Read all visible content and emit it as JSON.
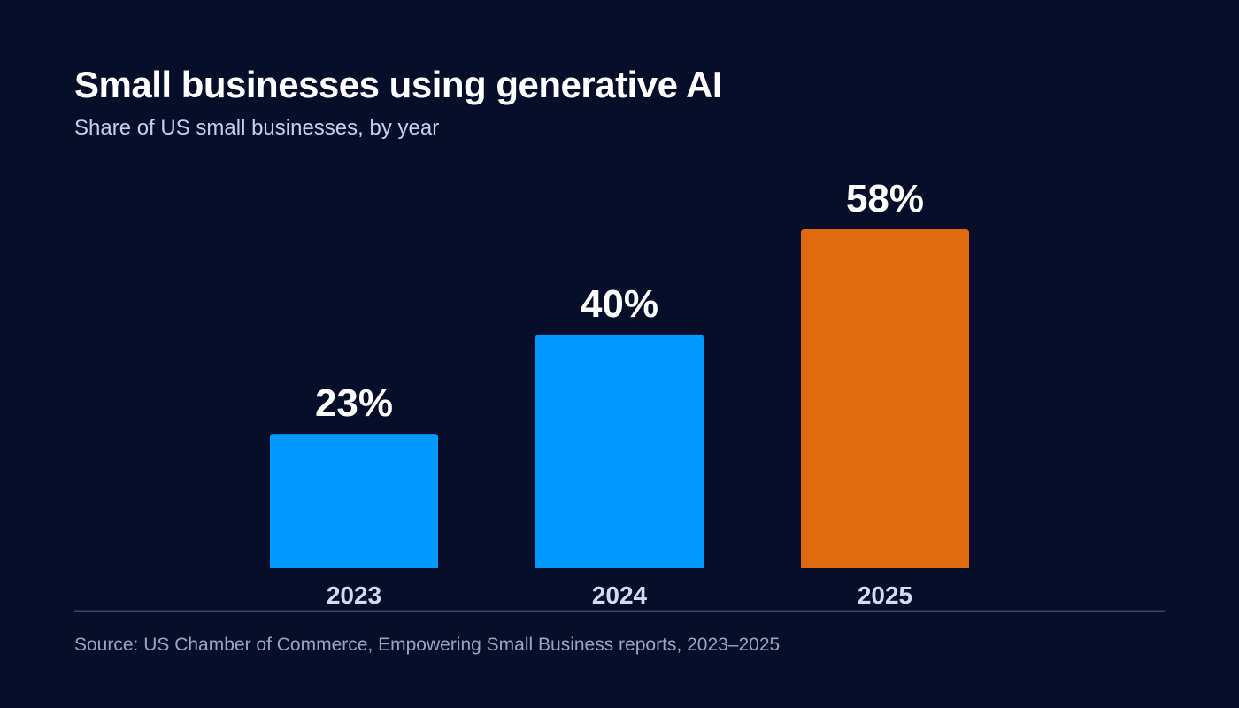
{
  "title": "Small businesses using generative AI",
  "subtitle": "Share of US small businesses, by year",
  "source": "Source: US Chamber of Commerce, Empowering Small Business reports, 2023–2025",
  "colors": {
    "background": "#070e2a",
    "bar_default": "#0099ff",
    "bar_highlight": "#e06a10",
    "axis_line": "#3a4470",
    "value_label": "#ffffff",
    "category_label": "#d4daf5"
  },
  "chart_data": {
    "type": "bar",
    "categories": [
      "2023",
      "2024",
      "2025"
    ],
    "values": [
      23,
      40,
      58
    ],
    "value_labels": [
      "23%",
      "40%",
      "58%"
    ],
    "unit": "%",
    "highlight_category": "2025",
    "ylim": [
      0,
      58
    ],
    "grid": false,
    "legend": "none"
  }
}
